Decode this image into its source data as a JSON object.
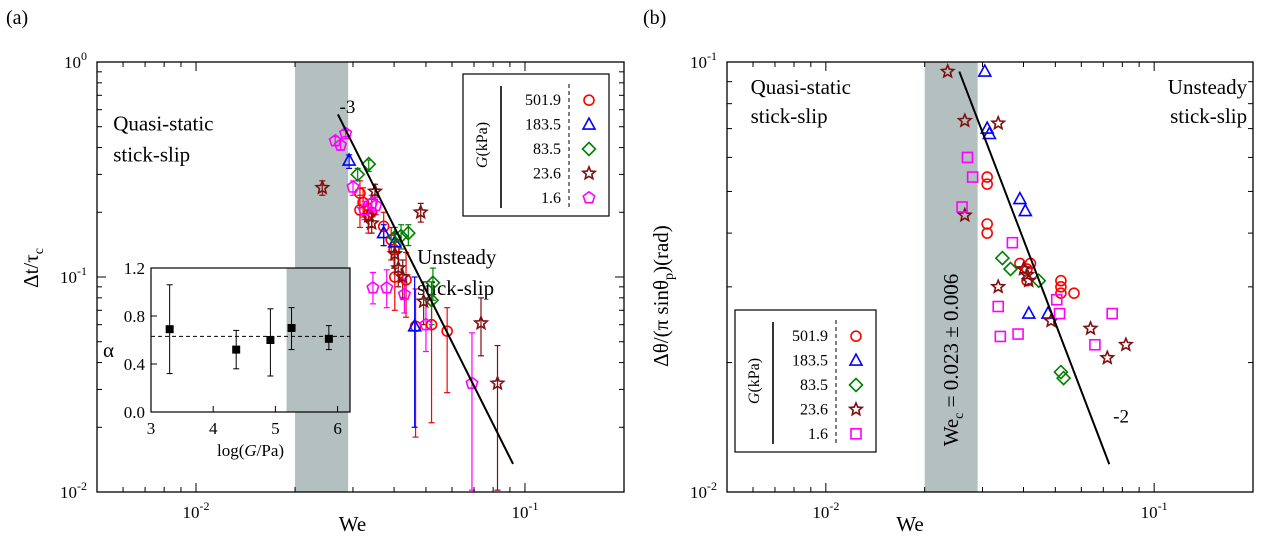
{
  "chart_data": [
    {
      "panel": "(a)",
      "type": "scatter",
      "scale": "log-log",
      "xlabel": "We",
      "ylabel": "Δt/τ",
      "ylabel_sub": "c",
      "xlim": [
        0.005,
        0.2
      ],
      "ylim": [
        0.01,
        1
      ],
      "x_ticks": [
        {
          "v": 0.01,
          "m": "10",
          "e": "-2"
        },
        {
          "v": 0.1,
          "m": "10",
          "e": "-1"
        }
      ],
      "y_ticks": [
        {
          "v": 0.01,
          "m": "10",
          "e": "-2"
        },
        {
          "v": 0.1,
          "m": "10",
          "e": "-1"
        },
        {
          "v": 1,
          "m": "10",
          "e": "0"
        }
      ],
      "shaded_band": [
        0.02,
        0.029
      ],
      "regions": [
        {
          "lines": [
            "Quasi-static",
            "stick-slip"
          ],
          "x": 0.0056,
          "y": 0.48
        },
        {
          "lines": [
            "Unsteady",
            "stick-slip"
          ],
          "x": 0.047,
          "y": 0.115
        }
      ],
      "fit_line": {
        "x": [
          0.027,
          0.092
        ],
        "y": [
          0.57,
          0.0135
        ],
        "label": "-3",
        "label_at": [
          0.0273,
          0.58
        ]
      },
      "legend": {
        "title": "G(kPa)",
        "position": "top-right",
        "entries": [
          {
            "value": "501.9",
            "marker": "circle",
            "color": "#ff0000"
          },
          {
            "value": "183.5",
            "marker": "triangle",
            "color": "#0000ff"
          },
          {
            "value": "83.5",
            "marker": "diamond",
            "color": "#008000"
          },
          {
            "value": "23.6",
            "marker": "star",
            "color": "#7f1010"
          },
          {
            "value": "1.6",
            "marker": "pentagon",
            "color": "#ff00ff"
          }
        ]
      },
      "series": [
        {
          "name": "501.9",
          "marker": "circle",
          "color": "#ff0000",
          "points": [
            {
              "x": 0.0315,
              "y": 0.245,
              "lo": 0.21,
              "hi": 0.28
            },
            {
              "x": 0.0322,
              "y": 0.222,
              "lo": 0.19,
              "hi": 0.26
            },
            {
              "x": 0.0315,
              "y": 0.205,
              "lo": 0.17,
              "hi": 0.24
            },
            {
              "x": 0.0334,
              "y": 0.195,
              "lo": 0.16,
              "hi": 0.23
            },
            {
              "x": 0.0342,
              "y": 0.2,
              "lo": 0.17,
              "hi": 0.23
            },
            {
              "x": 0.0372,
              "y": 0.172,
              "lo": 0.14,
              "hi": 0.2
            },
            {
              "x": 0.0392,
              "y": 0.149,
              "lo": 0.12,
              "hi": 0.17
            },
            {
              "x": 0.04,
              "y": 0.134,
              "lo": 0.11,
              "hi": 0.16
            },
            {
              "x": 0.0402,
              "y": 0.1,
              "lo": 0.07,
              "hi": 0.13
            },
            {
              "x": 0.0435,
              "y": 0.097,
              "lo": 0.065,
              "hi": 0.13
            },
            {
              "x": 0.0465,
              "y": 0.059,
              "lo": 0.018,
              "hi": 0.088
            },
            {
              "x": 0.052,
              "y": 0.06,
              "lo": 0.021,
              "hi": 0.082
            },
            {
              "x": 0.058,
              "y": 0.056,
              "lo": 0.029,
              "hi": 0.072
            }
          ]
        },
        {
          "name": "183.5",
          "marker": "triangle",
          "color": "#0000ff",
          "points": [
            {
              "x": 0.0292,
              "y": 0.348,
              "lo": 0.32,
              "hi": 0.37
            },
            {
              "x": 0.0372,
              "y": 0.16,
              "lo": 0.14,
              "hi": 0.175
            },
            {
              "x": 0.0402,
              "y": 0.145,
              "lo": 0.13,
              "hi": 0.16
            },
            {
              "x": 0.0462,
              "y": 0.059,
              "lo": 0.02,
              "hi": 0.1
            }
          ]
        },
        {
          "name": "83.5",
          "marker": "diamond",
          "color": "#008000",
          "points": [
            {
              "x": 0.031,
              "y": 0.3,
              "lo": 0.28,
              "hi": 0.32
            },
            {
              "x": 0.0335,
              "y": 0.335,
              "lo": 0.31,
              "hi": 0.35
            },
            {
              "x": 0.0402,
              "y": 0.153,
              "lo": 0.13,
              "hi": 0.17
            },
            {
              "x": 0.042,
              "y": 0.155,
              "lo": 0.135,
              "hi": 0.175
            },
            {
              "x": 0.0442,
              "y": 0.16,
              "lo": 0.14,
              "hi": 0.175
            },
            {
              "x": 0.0525,
              "y": 0.094,
              "lo": 0.078,
              "hi": 0.11
            },
            {
              "x": 0.052,
              "y": 0.078,
              "lo": 0.06,
              "hi": 0.095
            }
          ]
        },
        {
          "name": "23.6",
          "marker": "star",
          "color": "#7f1010",
          "points": [
            {
              "x": 0.0242,
              "y": 0.26,
              "lo": 0.24,
              "hi": 0.28
            },
            {
              "x": 0.0335,
              "y": 0.192,
              "lo": 0.17,
              "hi": 0.22
            },
            {
              "x": 0.0342,
              "y": 0.178,
              "lo": 0.16,
              "hi": 0.2
            },
            {
              "x": 0.035,
              "y": 0.25,
              "lo": 0.23,
              "hi": 0.27
            },
            {
              "x": 0.0402,
              "y": 0.128,
              "lo": 0.11,
              "hi": 0.145
            },
            {
              "x": 0.0412,
              "y": 0.11,
              "lo": 0.09,
              "hi": 0.13
            },
            {
              "x": 0.0425,
              "y": 0.1,
              "lo": 0.08,
              "hi": 0.12
            },
            {
              "x": 0.0482,
              "y": 0.2,
              "lo": 0.18,
              "hi": 0.22
            },
            {
              "x": 0.0492,
              "y": 0.077,
              "lo": 0.06,
              "hi": 0.095
            },
            {
              "x": 0.0735,
              "y": 0.061,
              "lo": 0.043,
              "hi": 0.08
            },
            {
              "x": 0.0825,
              "y": 0.032,
              "lo": 0.0102,
              "hi": 0.048
            }
          ]
        },
        {
          "name": "1.6",
          "marker": "pentagon",
          "color": "#ff00ff",
          "points": [
            {
              "x": 0.0265,
              "y": 0.43,
              "lo": 0.41,
              "hi": 0.45
            },
            {
              "x": 0.0275,
              "y": 0.41,
              "lo": 0.39,
              "hi": 0.43
            },
            {
              "x": 0.0285,
              "y": 0.465,
              "lo": 0.45,
              "hi": 0.48
            },
            {
              "x": 0.03,
              "y": 0.262,
              "lo": 0.24,
              "hi": 0.28
            },
            {
              "x": 0.0325,
              "y": 0.205,
              "lo": 0.185,
              "hi": 0.225
            },
            {
              "x": 0.0342,
              "y": 0.22,
              "lo": 0.2,
              "hi": 0.24
            },
            {
              "x": 0.0352,
              "y": 0.215,
              "lo": 0.195,
              "hi": 0.235
            },
            {
              "x": 0.0345,
              "y": 0.089,
              "lo": 0.075,
              "hi": 0.105
            },
            {
              "x": 0.038,
              "y": 0.089,
              "lo": 0.072,
              "hi": 0.108
            },
            {
              "x": 0.043,
              "y": 0.083,
              "lo": 0.068,
              "hi": 0.098
            },
            {
              "x": 0.05,
              "y": 0.06,
              "lo": 0.045,
              "hi": 0.08
            },
            {
              "x": 0.069,
              "y": 0.032,
              "lo": 0.0102,
              "hi": 0.055
            }
          ]
        }
      ],
      "inset": {
        "type": "scatter",
        "xlabel": "log(G/Pa)",
        "ylabel": "α",
        "xlim": [
          3,
          6.2
        ],
        "ylim": [
          0,
          1.2
        ],
        "x_ticks": [
          "3",
          "4",
          "5",
          "6"
        ],
        "y_ticks": [
          "0.0",
          "0.4",
          "0.8",
          "1.2"
        ],
        "y_tick_values": [
          0,
          0.4,
          0.8,
          1.2
        ],
        "x_tick_values": [
          3,
          4,
          5,
          6
        ],
        "reference_line": 0.63,
        "points": [
          {
            "x": 3.3,
            "y": 0.69,
            "lo": 0.32,
            "hi": 1.06
          },
          {
            "x": 4.37,
            "y": 0.52,
            "lo": 0.36,
            "hi": 0.68
          },
          {
            "x": 4.92,
            "y": 0.6,
            "lo": 0.3,
            "hi": 0.86
          },
          {
            "x": 5.26,
            "y": 0.7,
            "lo": 0.52,
            "hi": 0.87
          },
          {
            "x": 5.86,
            "y": 0.61,
            "lo": 0.52,
            "hi": 0.72
          }
        ]
      }
    },
    {
      "panel": "(b)",
      "type": "scatter",
      "scale": "log-log",
      "xlabel": "We",
      "ylabel": "Δθ/(π sinθ",
      "ylabel_sub": "p",
      "ylabel_tail": ")(rad)",
      "xlim": [
        0.005,
        0.2
      ],
      "ylim": [
        0.01,
        0.1
      ],
      "x_ticks": [
        {
          "v": 0.01,
          "m": "10",
          "e": "-2"
        },
        {
          "v": 0.1,
          "m": "10",
          "e": "-1"
        }
      ],
      "y_ticks": [
        {
          "v": 0.01,
          "m": "10",
          "e": "-2"
        },
        {
          "v": 0.1,
          "m": "10",
          "e": "-1"
        }
      ],
      "shaded_band": [
        0.02,
        0.029
      ],
      "band_label": "We",
      "band_label_sub": "c",
      "band_label_tail": " = 0.023 ± 0.006",
      "regions": [
        {
          "lines": [
            "Quasi-static",
            "stick-slip"
          ],
          "x": 0.0059,
          "y": 0.088
        },
        {
          "lines": [
            "Unsteady",
            "stick-slip"
          ],
          "x": 0.09,
          "y": 0.088
        }
      ],
      "fit_line": {
        "x": [
          0.0255,
          0.073
        ],
        "y": [
          0.095,
          0.0116
        ],
        "label": "-2",
        "label_at": [
          0.075,
          0.0145
        ]
      },
      "legend": {
        "title": "G(kPa)",
        "position": "bottom-left",
        "entries": [
          {
            "value": "501.9",
            "marker": "circle",
            "color": "#ff0000"
          },
          {
            "value": "183.5",
            "marker": "triangle",
            "color": "#0000ff"
          },
          {
            "value": "83.5",
            "marker": "diamond",
            "color": "#008000"
          },
          {
            "value": "23.6",
            "marker": "star",
            "color": "#7f1010"
          },
          {
            "value": "1.6",
            "marker": "square",
            "color": "#ff00ff"
          }
        ]
      },
      "series": [
        {
          "name": "501.9",
          "marker": "circle",
          "color": "#ff0000",
          "points": [
            {
              "x": 0.031,
              "y": 0.054
            },
            {
              "x": 0.031,
              "y": 0.052
            },
            {
              "x": 0.031,
              "y": 0.042
            },
            {
              "x": 0.031,
              "y": 0.04
            },
            {
              "x": 0.039,
              "y": 0.034
            },
            {
              "x": 0.041,
              "y": 0.033
            },
            {
              "x": 0.042,
              "y": 0.034
            },
            {
              "x": 0.041,
              "y": 0.031
            },
            {
              "x": 0.052,
              "y": 0.031
            },
            {
              "x": 0.052,
              "y": 0.03
            },
            {
              "x": 0.052,
              "y": 0.029
            },
            {
              "x": 0.057,
              "y": 0.029
            }
          ]
        },
        {
          "name": "183.5",
          "marker": "triangle",
          "color": "#0000ff",
          "points": [
            {
              "x": 0.0305,
              "y": 0.095
            },
            {
              "x": 0.031,
              "y": 0.07
            },
            {
              "x": 0.0315,
              "y": 0.068
            },
            {
              "x": 0.039,
              "y": 0.048
            },
            {
              "x": 0.0405,
              "y": 0.045
            },
            {
              "x": 0.0415,
              "y": 0.026
            },
            {
              "x": 0.0475,
              "y": 0.026
            }
          ]
        },
        {
          "name": "83.5",
          "marker": "diamond",
          "color": "#008000",
          "points": [
            {
              "x": 0.0345,
              "y": 0.035
            },
            {
              "x": 0.0365,
              "y": 0.033
            },
            {
              "x": 0.0445,
              "y": 0.031
            },
            {
              "x": 0.052,
              "y": 0.019
            },
            {
              "x": 0.053,
              "y": 0.0184
            }
          ]
        },
        {
          "name": "23.6",
          "marker": "star",
          "color": "#7f1010",
          "points": [
            {
              "x": 0.0235,
              "y": 0.095
            },
            {
              "x": 0.0265,
              "y": 0.073
            },
            {
              "x": 0.0265,
              "y": 0.044
            },
            {
              "x": 0.0335,
              "y": 0.072
            },
            {
              "x": 0.0335,
              "y": 0.03
            },
            {
              "x": 0.04,
              "y": 0.033
            },
            {
              "x": 0.041,
              "y": 0.032
            },
            {
              "x": 0.0415,
              "y": 0.031
            },
            {
              "x": 0.0485,
              "y": 0.025
            },
            {
              "x": 0.064,
              "y": 0.024
            },
            {
              "x": 0.072,
              "y": 0.0205
            },
            {
              "x": 0.082,
              "y": 0.022
            }
          ]
        },
        {
          "name": "1.6",
          "marker": "square",
          "color": "#ff00ff",
          "points": [
            {
              "x": 0.026,
              "y": 0.046
            },
            {
              "x": 0.027,
              "y": 0.06
            },
            {
              "x": 0.028,
              "y": 0.054
            },
            {
              "x": 0.0335,
              "y": 0.027
            },
            {
              "x": 0.034,
              "y": 0.023
            },
            {
              "x": 0.037,
              "y": 0.038
            },
            {
              "x": 0.0385,
              "y": 0.0233
            },
            {
              "x": 0.0505,
              "y": 0.028
            },
            {
              "x": 0.0515,
              "y": 0.026
            },
            {
              "x": 0.066,
              "y": 0.022
            },
            {
              "x": 0.0745,
              "y": 0.026
            }
          ]
        }
      ]
    }
  ]
}
